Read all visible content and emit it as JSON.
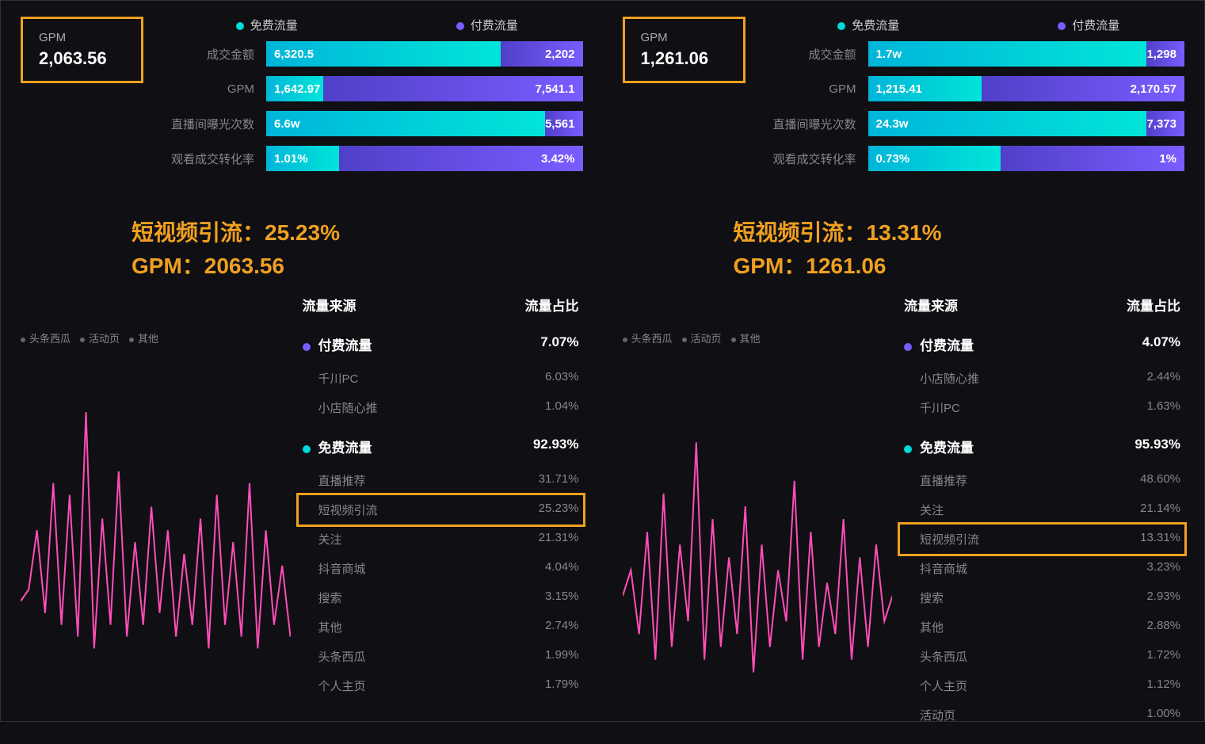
{
  "colors": {
    "highlight_border": "#f0a020",
    "free_traffic": "#00d9d9",
    "paid_traffic": "#7a5cff",
    "chart_line": "#ff4db8",
    "background": "#0f0f14",
    "text_muted": "#888888",
    "text": "#ffffff"
  },
  "legend": {
    "free_label": "免费流量",
    "paid_label": "付费流量"
  },
  "metrics_labels": {
    "m1": "成交金额",
    "m2": "GPM",
    "m3": "直播间曝光次数",
    "m4": "观看成交转化率"
  },
  "source_header": {
    "col1": "流量来源",
    "col2": "流量占比"
  },
  "chart_legend_items": [
    "头条西瓜",
    "活动页",
    "其他"
  ],
  "left": {
    "gpm_label": "GPM",
    "gpm_value": "2,063.56",
    "metrics": {
      "m1": {
        "free_val": "6,320.5",
        "paid_val": "2,202",
        "free_pct": 74
      },
      "m2": {
        "free_val": "1,642.97",
        "paid_val": "7,541.1",
        "free_pct": 18
      },
      "m3": {
        "free_val": "6.6w",
        "paid_val": "5,561",
        "free_pct": 92
      },
      "m4": {
        "free_val": "1.01%",
        "paid_val": "3.42%",
        "free_pct": 23
      }
    },
    "annotation_line1": "短视频引流：25.23%",
    "annotation_line2": "GPM：2063.56",
    "paid_group": {
      "title": "付费流量",
      "total": "7.07%",
      "items": [
        {
          "name": "千川PC",
          "pct": "6.03%"
        },
        {
          "name": "小店随心推",
          "pct": "1.04%"
        }
      ]
    },
    "free_group": {
      "title": "免费流量",
      "total": "92.93%",
      "items": [
        {
          "name": "直播推荐",
          "pct": "31.71%"
        },
        {
          "name": "短视频引流",
          "pct": "25.23%",
          "highlighted": true
        },
        {
          "name": "关注",
          "pct": "21.31%"
        },
        {
          "name": "抖音商城",
          "pct": "4.04%"
        },
        {
          "name": "搜索",
          "pct": "3.15%"
        },
        {
          "name": "其他",
          "pct": "2.74%"
        },
        {
          "name": "头条西瓜",
          "pct": "1.99%"
        },
        {
          "name": "个人主页",
          "pct": "1.79%"
        }
      ]
    },
    "chart_points": [
      40,
      45,
      70,
      35,
      90,
      30,
      85,
      25,
      120,
      20,
      75,
      30,
      95,
      25,
      65,
      30,
      80,
      35,
      70,
      25,
      60,
      30,
      75,
      20,
      85,
      30,
      65,
      25,
      90,
      20,
      70,
      30,
      55,
      25
    ]
  },
  "right": {
    "gpm_label": "GPM",
    "gpm_value": "1,261.06",
    "metrics": {
      "m1": {
        "free_val": "1.7w",
        "paid_val": "1,298",
        "free_pct": 93
      },
      "m2": {
        "free_val": "1,215.41",
        "paid_val": "2,170.57",
        "free_pct": 36
      },
      "m3": {
        "free_val": "24.3w",
        "paid_val": "7,373",
        "free_pct": 97
      },
      "m4": {
        "free_val": "0.73%",
        "paid_val": "1%",
        "free_pct": 42
      }
    },
    "annotation_line1": "短视频引流：13.31%",
    "annotation_line2": "GPM：1261.06",
    "paid_group": {
      "title": "付费流量",
      "total": "4.07%",
      "items": [
        {
          "name": "小店随心推",
          "pct": "2.44%"
        },
        {
          "name": "千川PC",
          "pct": "1.63%"
        }
      ]
    },
    "free_group": {
      "title": "免费流量",
      "total": "95.93%",
      "items": [
        {
          "name": "直播推荐",
          "pct": "48.60%"
        },
        {
          "name": "关注",
          "pct": "21.14%"
        },
        {
          "name": "短视频引流",
          "pct": "13.31%",
          "highlighted": true
        },
        {
          "name": "抖音商城",
          "pct": "3.23%"
        },
        {
          "name": "搜索",
          "pct": "2.93%"
        },
        {
          "name": "其他",
          "pct": "2.88%"
        },
        {
          "name": "头条西瓜",
          "pct": "1.72%"
        },
        {
          "name": "个人主页",
          "pct": "1.12%"
        },
        {
          "name": "活动页",
          "pct": "1.00%"
        }
      ]
    },
    "chart_points": [
      50,
      60,
      35,
      75,
      25,
      90,
      30,
      70,
      40,
      110,
      25,
      80,
      30,
      65,
      35,
      85,
      20,
      70,
      30,
      60,
      40,
      95,
      25,
      75,
      30,
      55,
      35,
      80,
      25,
      65,
      30,
      70,
      40,
      50
    ]
  }
}
